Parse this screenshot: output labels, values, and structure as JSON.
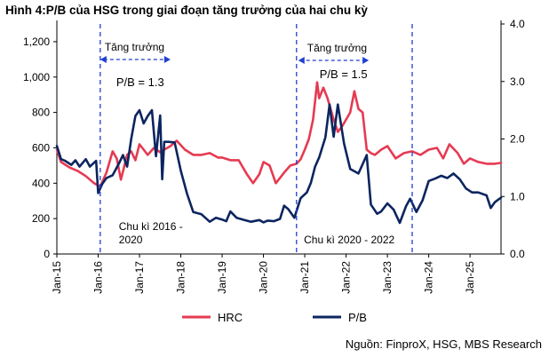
{
  "title": "Hình 4:P/B của HSG trong giai đoạn tăng trưởng của hai chu kỳ",
  "source": "Nguồn: FinproX, HSG, MBS Research",
  "colors": {
    "hrc": "#e63a52",
    "pb": "#0c2560",
    "cycle_line": "#1f3fd0",
    "axis": "#000000"
  },
  "chart_data": {
    "type": "line",
    "x_tick_labels": [
      "Jan-15",
      "Jan-16",
      "Jan-17",
      "Jan-18",
      "Jan-19",
      "Jan-20",
      "Jan-21",
      "Jan-22",
      "Jan-23",
      "Jan-24",
      "Jan-25"
    ],
    "x_range": [
      2015.0,
      2025.75
    ],
    "y_left": {
      "ticks": [
        0,
        200,
        400,
        600,
        800,
        1000,
        1200
      ],
      "tick_labels": [
        "0",
        "200",
        "400",
        "600",
        "800",
        "1,000",
        "1,200"
      ],
      "range": [
        0,
        1300
      ]
    },
    "y_right": {
      "ticks": [
        0,
        1,
        2,
        3,
        4
      ],
      "tick_labels": [
        "0.0",
        "1.0",
        "2.0",
        "3.0",
        "4.0"
      ],
      "range": [
        0,
        4
      ]
    },
    "legend": {
      "placement": "bottom",
      "items": [
        "HRC",
        "P/B"
      ]
    },
    "series": [
      {
        "name": "HRC",
        "axis": "left",
        "color": "#e63a52",
        "x": [
          2015.0,
          2015.1,
          2015.3,
          2015.5,
          2015.7,
          2015.9,
          2016.05,
          2016.2,
          2016.35,
          2016.45,
          2016.55,
          2016.7,
          2016.8,
          2016.9,
          2017.0,
          2017.1,
          2017.2,
          2017.35,
          2017.5,
          2017.6,
          2017.75,
          2017.9,
          2018.1,
          2018.3,
          2018.5,
          2018.7,
          2018.9,
          2019.0,
          2019.2,
          2019.4,
          2019.6,
          2019.75,
          2019.9,
          2020.0,
          2020.15,
          2020.3,
          2020.5,
          2020.65,
          2020.8,
          2020.9,
          2021.0,
          2021.1,
          2021.2,
          2021.3,
          2021.35,
          2021.45,
          2021.55,
          2021.7,
          2021.8,
          2021.9,
          2022.0,
          2022.1,
          2022.2,
          2022.3,
          2022.4,
          2022.5,
          2022.6,
          2022.7,
          2022.85,
          2023.0,
          2023.2,
          2023.4,
          2023.6,
          2023.8,
          2024.0,
          2024.2,
          2024.35,
          2024.5,
          2024.7,
          2024.85,
          2025.0,
          2025.2,
          2025.4,
          2025.6,
          2025.75
        ],
        "y": [
          590,
          520,
          490,
          470,
          440,
          400,
          380,
          460,
          580,
          540,
          420,
          560,
          580,
          530,
          620,
          590,
          560,
          600,
          575,
          590,
          610,
          640,
          590,
          560,
          560,
          570,
          545,
          545,
          530,
          530,
          450,
          400,
          450,
          520,
          500,
          400,
          460,
          500,
          510,
          535,
          590,
          650,
          760,
          970,
          880,
          940,
          880,
          760,
          690,
          720,
          760,
          800,
          920,
          820,
          800,
          590,
          570,
          560,
          590,
          610,
          540,
          570,
          580,
          560,
          590,
          600,
          540,
          620,
          570,
          510,
          540,
          520,
          510,
          510,
          515
        ]
      },
      {
        "name": "P/B",
        "axis": "right",
        "color": "#0c2560",
        "x": [
          2015.0,
          2015.1,
          2015.2,
          2015.35,
          2015.45,
          2015.55,
          2015.7,
          2015.8,
          2015.95,
          2016.0,
          2016.1,
          2016.2,
          2016.35,
          2016.5,
          2016.6,
          2016.7,
          2016.8,
          2016.9,
          2017.0,
          2017.1,
          2017.2,
          2017.3,
          2017.4,
          2017.5,
          2017.55,
          2017.6,
          2017.7,
          2017.85,
          2018.0,
          2018.15,
          2018.3,
          2018.5,
          2018.7,
          2018.85,
          2019.0,
          2019.1,
          2019.2,
          2019.35,
          2019.5,
          2019.7,
          2019.9,
          2020.0,
          2020.1,
          2020.25,
          2020.4,
          2020.5,
          2020.6,
          2020.75,
          2020.9,
          2021.05,
          2021.15,
          2021.25,
          2021.35,
          2021.5,
          2021.6,
          2021.7,
          2021.8,
          2021.95,
          2022.1,
          2022.3,
          2022.5,
          2022.6,
          2022.75,
          2022.85,
          2023.0,
          2023.15,
          2023.3,
          2023.45,
          2023.55,
          2023.7,
          2023.85,
          2024.0,
          2024.15,
          2024.3,
          2024.45,
          2024.6,
          2024.75,
          2024.9,
          2025.05,
          2025.2,
          2025.4,
          2025.5,
          2025.6,
          2025.75
        ],
        "y": [
          1.88,
          1.65,
          1.62,
          1.55,
          1.63,
          1.52,
          1.65,
          1.52,
          1.62,
          1.06,
          1.22,
          1.32,
          1.37,
          1.57,
          1.72,
          1.52,
          2.0,
          2.4,
          2.5,
          2.27,
          2.4,
          2.5,
          1.7,
          2.41,
          1.3,
          1.95,
          1.95,
          1.94,
          1.45,
          1.05,
          0.73,
          0.69,
          0.56,
          0.63,
          0.6,
          0.57,
          0.74,
          0.63,
          0.6,
          0.56,
          0.59,
          0.55,
          0.58,
          0.57,
          0.61,
          0.84,
          0.78,
          0.63,
          0.97,
          1.07,
          1.24,
          1.52,
          1.68,
          2.03,
          2.6,
          2.04,
          2.6,
          1.92,
          1.48,
          1.4,
          1.72,
          0.86,
          0.7,
          0.74,
          0.88,
          0.77,
          0.54,
          0.83,
          0.96,
          0.73,
          0.93,
          1.27,
          1.31,
          1.36,
          1.32,
          1.4,
          1.3,
          1.14,
          1.07,
          1.07,
          1.02,
          0.8,
          0.9,
          0.98
        ]
      }
    ],
    "vertical_markers": [
      {
        "x": 2016.05,
        "style": "dashed"
      },
      {
        "x": 2020.8,
        "style": "dashed"
      },
      {
        "x": 2023.6,
        "style": "dashed"
      }
    ],
    "annotations": [
      {
        "text": "Tăng trưởng",
        "kind": "arrow-label",
        "x_start": 2016.05,
        "x_end": 2017.75
      },
      {
        "text": "P/B = 1.3",
        "kind": "label"
      },
      {
        "text": "Tăng trưởng",
        "kind": "arrow-label",
        "x_start": 2020.8,
        "x_end": 2022.55
      },
      {
        "text": "P/B = 1.5",
        "kind": "label"
      },
      {
        "text": "Chu kì 2016 - 2020",
        "kind": "label"
      },
      {
        "text": "Chu kì 2020 - 2022",
        "kind": "label"
      }
    ]
  }
}
